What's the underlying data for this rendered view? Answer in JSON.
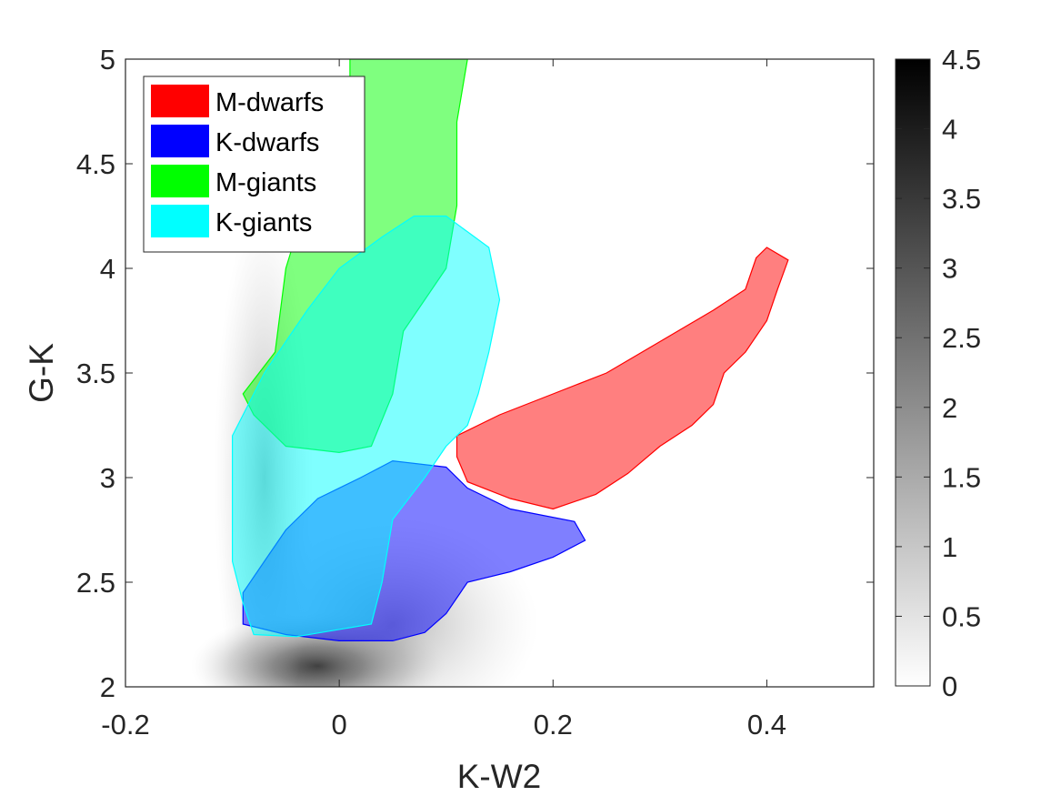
{
  "chart_data": {
    "type": "heatmap",
    "title": "",
    "xlabel": "K-W2",
    "ylabel": "G-K",
    "xlim": [
      -0.2,
      0.5
    ],
    "ylim": [
      2,
      5
    ],
    "x_ticks": [
      -0.2,
      0,
      0.2,
      0.4
    ],
    "x_tick_labels": [
      "-0.2",
      "0",
      "0.2",
      "0.4"
    ],
    "y_ticks": [
      2,
      2.5,
      3,
      3.5,
      4,
      4.5,
      5
    ],
    "y_tick_labels": [
      "2",
      "2.5",
      "3",
      "3.5",
      "4",
      "4.5",
      "5"
    ],
    "grid": false,
    "legend_position": "top-left",
    "colorbar": {
      "colormap": "gray-reversed",
      "range": [
        0,
        4.5
      ],
      "ticks": [
        0,
        0.5,
        1,
        1.5,
        2,
        2.5,
        3,
        3.5,
        4,
        4.5
      ],
      "tick_labels": [
        "0",
        "0.5",
        "1",
        "1.5",
        "2",
        "2.5",
        "3",
        "3.5",
        "4",
        "4.5"
      ]
    },
    "density_background": {
      "description_values": "log density, peak near (K-W2, G-K)",
      "peak": [
        -0.02,
        2.1
      ],
      "peak_value": 4.3
    },
    "series": [
      {
        "name": "M-dwarfs",
        "color": "#ff0000",
        "polygon": [
          [
            0.11,
            3.2
          ],
          [
            0.15,
            3.3
          ],
          [
            0.2,
            3.4
          ],
          [
            0.25,
            3.5
          ],
          [
            0.3,
            3.65
          ],
          [
            0.35,
            3.8
          ],
          [
            0.38,
            3.9
          ],
          [
            0.39,
            4.05
          ],
          [
            0.4,
            4.1
          ],
          [
            0.42,
            4.04
          ],
          [
            0.41,
            3.9
          ],
          [
            0.4,
            3.75
          ],
          [
            0.38,
            3.6
          ],
          [
            0.36,
            3.5
          ],
          [
            0.35,
            3.35
          ],
          [
            0.33,
            3.25
          ],
          [
            0.3,
            3.15
          ],
          [
            0.27,
            3.02
          ],
          [
            0.24,
            2.92
          ],
          [
            0.2,
            2.85
          ],
          [
            0.16,
            2.9
          ],
          [
            0.12,
            2.98
          ],
          [
            0.11,
            3.1
          ]
        ]
      },
      {
        "name": "K-dwarfs",
        "color": "#0000ff",
        "polygon": [
          [
            -0.09,
            2.3
          ],
          [
            -0.05,
            2.25
          ],
          [
            0,
            2.22
          ],
          [
            0.05,
            2.22
          ],
          [
            0.08,
            2.26
          ],
          [
            0.1,
            2.35
          ],
          [
            0.12,
            2.5
          ],
          [
            0.16,
            2.55
          ],
          [
            0.2,
            2.62
          ],
          [
            0.23,
            2.7
          ],
          [
            0.22,
            2.79
          ],
          [
            0.16,
            2.85
          ],
          [
            0.12,
            2.95
          ],
          [
            0.1,
            3.05
          ],
          [
            0.05,
            3.08
          ],
          [
            0.02,
            3.0
          ],
          [
            -0.02,
            2.9
          ],
          [
            -0.05,
            2.75
          ],
          [
            -0.07,
            2.6
          ],
          [
            -0.09,
            2.45
          ]
        ]
      },
      {
        "name": "M-giants",
        "color": "#00ff00",
        "polygon": [
          [
            -0.06,
            3.6
          ],
          [
            -0.05,
            4.0
          ],
          [
            -0.02,
            4.5
          ],
          [
            0.01,
            4.9
          ],
          [
            0.01,
            5.0
          ],
          [
            0.12,
            5.0
          ],
          [
            0.11,
            4.7
          ],
          [
            0.11,
            4.3
          ],
          [
            0.1,
            4.0
          ],
          [
            0.06,
            3.7
          ],
          [
            0.05,
            3.4
          ],
          [
            0.03,
            3.15
          ],
          [
            0,
            3.12
          ],
          [
            -0.05,
            3.15
          ],
          [
            -0.08,
            3.3
          ],
          [
            -0.09,
            3.4
          ]
        ]
      },
      {
        "name": "K-giants",
        "color": "#00ffff",
        "polygon": [
          [
            -0.1,
            2.8
          ],
          [
            -0.1,
            3.2
          ],
          [
            -0.07,
            3.5
          ],
          [
            -0.03,
            3.8
          ],
          [
            0.0,
            4.0
          ],
          [
            0.04,
            4.15
          ],
          [
            0.07,
            4.25
          ],
          [
            0.1,
            4.25
          ],
          [
            0.14,
            4.1
          ],
          [
            0.15,
            3.85
          ],
          [
            0.14,
            3.6
          ],
          [
            0.13,
            3.4
          ],
          [
            0.12,
            3.25
          ],
          [
            0.1,
            3.15
          ],
          [
            0.08,
            3.0
          ],
          [
            0.05,
            2.8
          ],
          [
            0.04,
            2.5
          ],
          [
            0.03,
            2.3
          ],
          [
            -0.04,
            2.24
          ],
          [
            -0.08,
            2.25
          ],
          [
            -0.09,
            2.4
          ],
          [
            -0.1,
            2.6
          ]
        ]
      }
    ]
  }
}
